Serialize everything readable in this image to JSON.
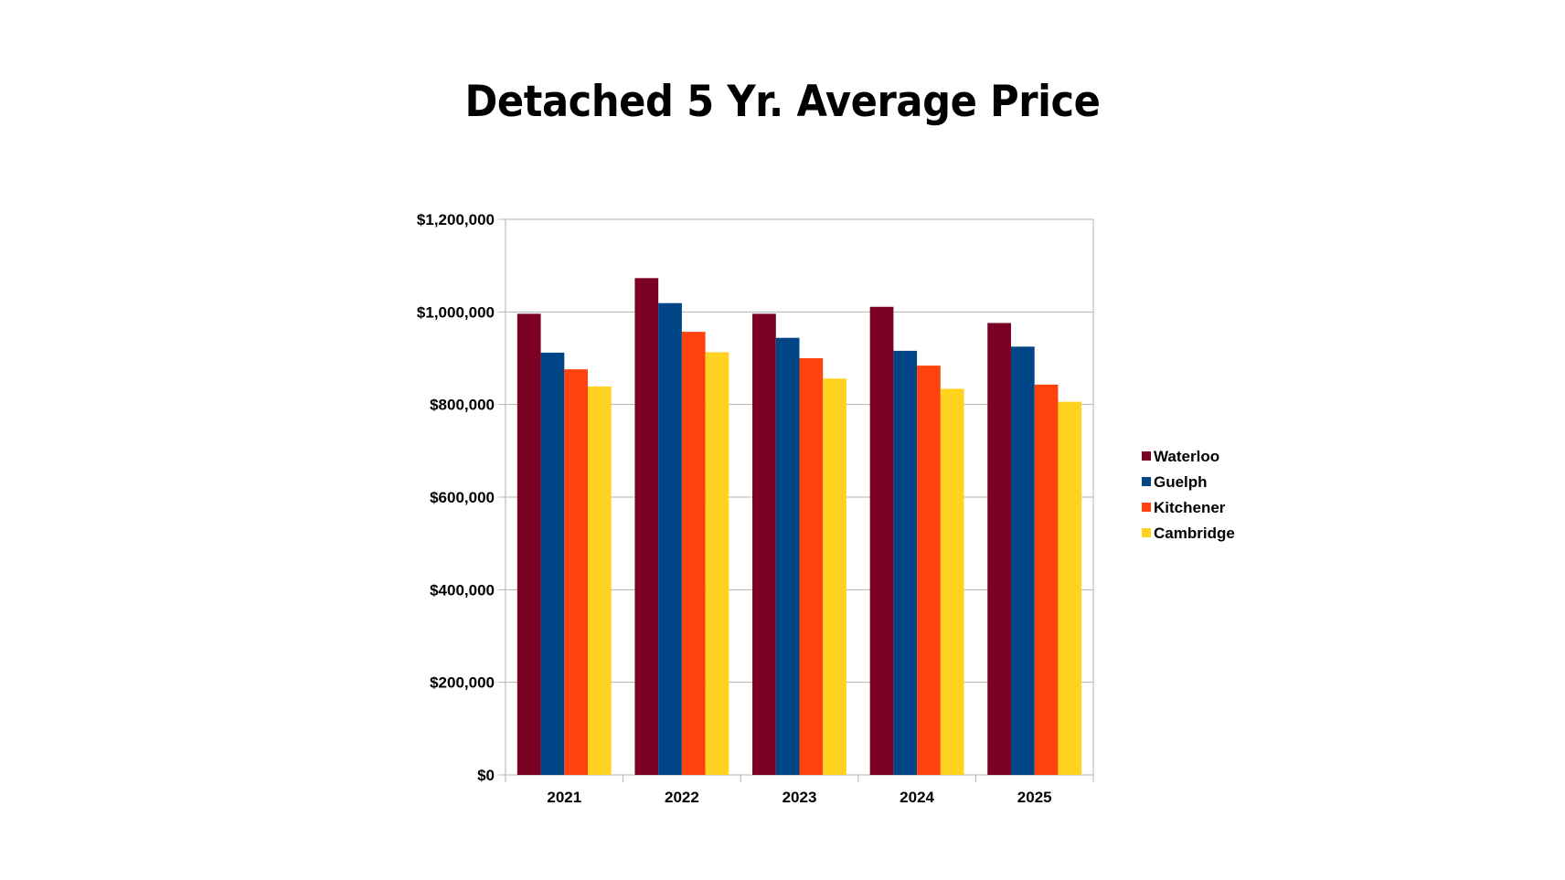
{
  "chart_data": {
    "type": "bar",
    "title": "Detached 5 Yr. Average Price",
    "xlabel": "",
    "ylabel": "",
    "categories": [
      "2021",
      "2022",
      "2023",
      "2024",
      "2025"
    ],
    "series": [
      {
        "name": "Waterloo",
        "color": "#7b0023",
        "values": [
          996000,
          1073000,
          996000,
          1011000,
          976000
        ]
      },
      {
        "name": "Guelph",
        "color": "#004586",
        "values": [
          912000,
          1019000,
          944000,
          916000,
          925000
        ]
      },
      {
        "name": "Kitchener",
        "color": "#ff420e",
        "values": [
          876000,
          957000,
          900000,
          884000,
          843000
        ]
      },
      {
        "name": "Cambridge",
        "color": "#ffd320",
        "values": [
          839000,
          913000,
          856000,
          834000,
          806000
        ]
      }
    ],
    "ylim": [
      0,
      1200000
    ],
    "yticks": [
      0,
      200000,
      400000,
      600000,
      800000,
      1000000,
      1200000
    ],
    "ytick_labels": [
      "$0",
      "$200,000",
      "$400,000",
      "$600,000",
      "$800,000",
      "$1,000,000",
      "$1,200,000"
    ],
    "grid": true,
    "legend_position": "right"
  }
}
